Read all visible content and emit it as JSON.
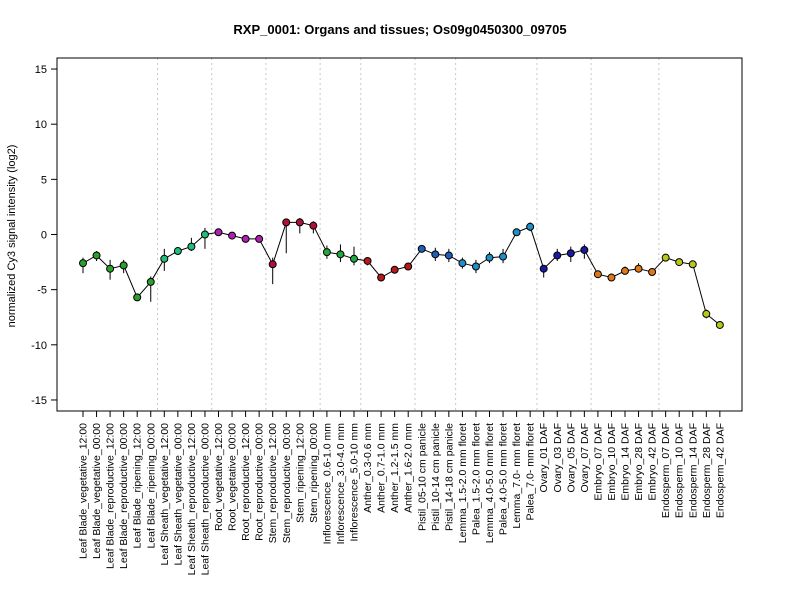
{
  "chart_data": {
    "type": "line",
    "title": "RXP_0001: Organs and tissues; Os09g0450300_09705",
    "xlabel": "",
    "ylabel": "normalized Cy3 signal intensity (log2)",
    "ylim": [
      -16,
      16
    ],
    "yticks": [
      -15,
      -10,
      -5,
      0,
      5,
      10,
      15
    ],
    "grid": "vertical dotted group separators",
    "legend": "none",
    "categories": [
      "Leaf Blade_vegetative_12:00",
      "Leaf Blade_vegetative_00:00",
      "Leaf Blade_reproductive_12:00",
      "Leaf Blade_reproductive_00:00",
      "Leaf Blade_ripening_12:00",
      "Leaf Blade_ripening_00:00",
      "Leaf Sheath_vegetative_12:00",
      "Leaf Sheath_vegetative_00:00",
      "Leaf Sheath_reproductive_12:00",
      "Leaf Sheath_reproductive_00:00",
      "Root_vegetative_12:00",
      "Root_vegetative_00:00",
      "Root_reproductive_12:00",
      "Root_reproductive_00:00",
      "Stem_reproductive_12:00",
      "Stem_reproductive_00:00",
      "Stem_ripening_12:00",
      "Stem_ripening_00:00",
      "Inflorescence_0.6-1.0 mm",
      "Inflorescence_3.0-4.0 mm",
      "Inflorescence_5.0-10 mm",
      "Anther_0.3-0.6 mm",
      "Anther_0.7-1.0 mm",
      "Anther_1.2-1.5 mm",
      "Anther_1.6-2.0 mm",
      "Pistil_05-10 cm panicle",
      "Pistil_10-14 cm panicle",
      "Pistil_14-18 cm panicle",
      "Lemma_1.5-2.0 mm floret",
      "Palea_1.5-2.0 mm floret",
      "Lemma_4.0-5.0 mm floret",
      "Palea_4.0-5.0 mm floret",
      "Lemma_7.0- mm floret",
      "Palea_7.0- mm floret",
      "Ovary_01 DAF",
      "Ovary_03 DAF",
      "Ovary_05 DAF",
      "Ovary_07 DAF",
      "Embryo_07 DAF",
      "Embryo_10 DAF",
      "Embryo_14 DAF",
      "Embryo_28 DAF",
      "Embryo_42 DAF",
      "Endosperm_07 DAF",
      "Endosperm_10 DAF",
      "Endosperm_14 DAF",
      "Endosperm_28 DAF",
      "Endosperm_42 DAF"
    ],
    "values": [
      -2.6,
      -1.9,
      -3.1,
      -2.8,
      -5.7,
      -4.3,
      -2.2,
      -1.5,
      -1.1,
      0.0,
      0.2,
      -0.1,
      -0.4,
      -0.4,
      -2.7,
      1.1,
      1.1,
      0.8,
      -1.6,
      -1.8,
      -2.2,
      -2.4,
      -3.9,
      -3.2,
      -2.9,
      -1.3,
      -1.8,
      -1.9,
      -2.6,
      -2.9,
      -2.1,
      -2.0,
      0.2,
      0.7,
      -3.1,
      -1.9,
      -1.7,
      -1.4,
      -3.6,
      -3.9,
      -3.3,
      -3.1,
      -3.4,
      -2.1,
      -2.5,
      -2.7,
      -7.2,
      -8.2
    ],
    "error_low": [
      -3.5,
      -2.4,
      -4.1,
      -3.5,
      -5.9,
      -6.1,
      -3.3,
      -1.7,
      -1.5,
      -1.3,
      0.1,
      -0.4,
      -0.6,
      -0.6,
      -4.5,
      -1.7,
      0.1,
      0.1,
      -2.2,
      -2.5,
      -2.8,
      -2.8,
      -4.1,
      -3.4,
      -3.1,
      -1.5,
      -2.4,
      -2.5,
      -3.1,
      -3.5,
      -2.6,
      -2.6,
      0.0,
      0.3,
      -3.9,
      -2.4,
      -2.5,
      -2.2,
      -3.8,
      -4.1,
      -3.6,
      -3.4,
      -3.6,
      -2.3,
      -2.6,
      -2.9,
      -7.6,
      -8.4
    ],
    "error_high": [
      -2.1,
      -1.5,
      -2.3,
      -2.3,
      -5.4,
      -3.8,
      -1.3,
      -1.3,
      -0.3,
      0.6,
      0.3,
      0.2,
      -0.2,
      -0.2,
      -2.1,
      1.3,
      1.5,
      1.2,
      -1.0,
      -0.9,
      -1.1,
      -2.1,
      -3.6,
      -2.9,
      -2.7,
      -1.1,
      -1.2,
      -1.3,
      -2.1,
      -2.3,
      -1.6,
      -1.3,
      0.4,
      1.1,
      -2.8,
      -1.3,
      -1.1,
      -0.9,
      -3.3,
      -3.6,
      -2.9,
      -2.6,
      -3.1,
      -1.9,
      -2.3,
      -2.4,
      -6.8,
      -8.0
    ],
    "point_colors": [
      "#2ca02c",
      "#2ca02c",
      "#2ca02c",
      "#2ca02c",
      "#2ca02c",
      "#2ca02c",
      "#1fbf7a",
      "#1fbf7a",
      "#1fbf7a",
      "#1fbf7a",
      "#b020b0",
      "#b020b0",
      "#b020b0",
      "#b020b0",
      "#b0103a",
      "#b0103a",
      "#b0103a",
      "#b0103a",
      "#22a840",
      "#22a840",
      "#22a840",
      "#b81818",
      "#b81818",
      "#b81818",
      "#b81818",
      "#1e5fb5",
      "#1e5fb5",
      "#1e5fb5",
      "#1e8fc8",
      "#1e8fc8",
      "#1e8fc8",
      "#1e8fc8",
      "#1e8fc8",
      "#1e8fc8",
      "#1a1aa0",
      "#1a1aa0",
      "#1a1aa0",
      "#1a1aa0",
      "#e07818",
      "#e07818",
      "#e07818",
      "#e07818",
      "#e07818",
      "#b8c818",
      "#b8c818",
      "#b8c818",
      "#b8c818",
      "#b8c818"
    ],
    "group_separators_after": [
      5,
      9,
      13,
      17,
      20,
      24,
      27,
      33,
      37,
      42
    ]
  }
}
